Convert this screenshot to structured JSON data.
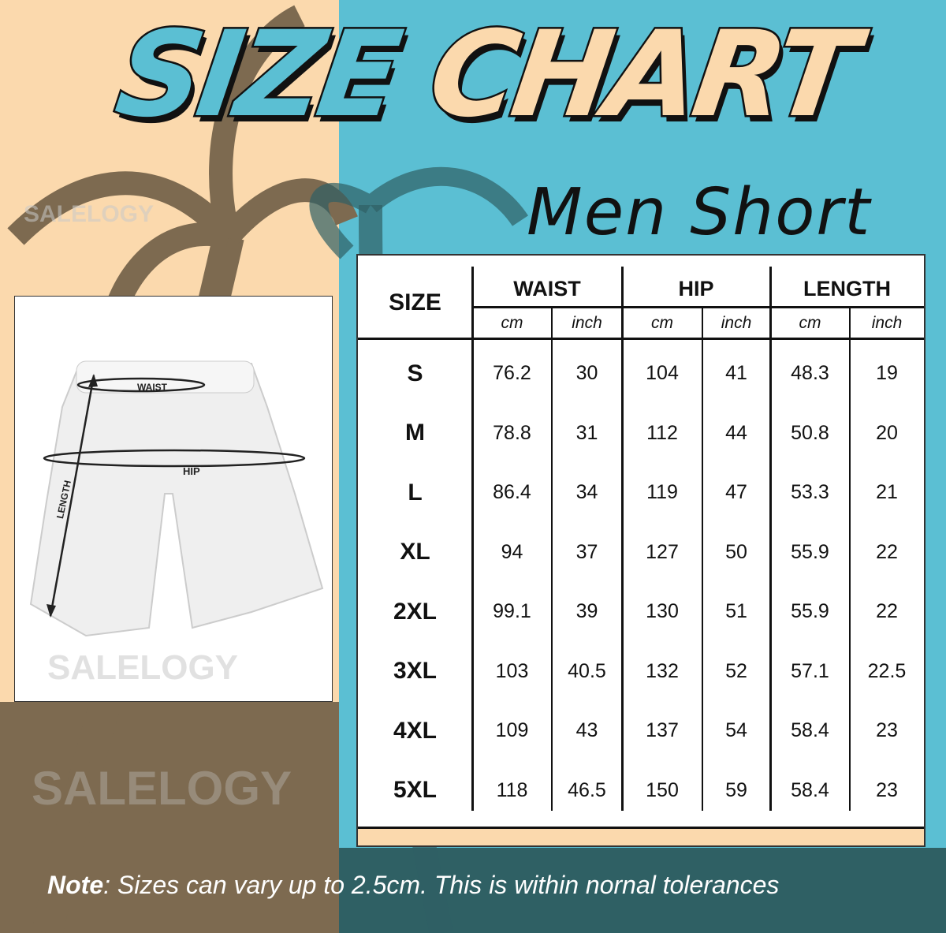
{
  "title": {
    "word1": "SIZE",
    "word2": "CHART",
    "subtitle": "Men Short"
  },
  "watermark": "SALELOGY",
  "colors": {
    "peach": "#fbd9ad",
    "brown": "#7d6a50",
    "teal": "#5bbfd3",
    "dark_teal": "#2f6064"
  },
  "diagram": {
    "waist_label": "WAIST",
    "hip_label": "HIP",
    "length_label": "LENGTH"
  },
  "chart_data": {
    "type": "table",
    "size_header": "SIZE",
    "groups": [
      {
        "label": "WAIST",
        "units": [
          "cm",
          "inch"
        ]
      },
      {
        "label": "HIP",
        "units": [
          "cm",
          "inch"
        ]
      },
      {
        "label": "LENGTH",
        "units": [
          "cm",
          "inch"
        ]
      }
    ],
    "rows": [
      {
        "size": "S",
        "values": [
          "76.2",
          "30",
          "104",
          "41",
          "48.3",
          "19"
        ]
      },
      {
        "size": "M",
        "values": [
          "78.8",
          "31",
          "112",
          "44",
          "50.8",
          "20"
        ]
      },
      {
        "size": "L",
        "values": [
          "86.4",
          "34",
          "119",
          "47",
          "53.3",
          "21"
        ]
      },
      {
        "size": "XL",
        "values": [
          "94",
          "37",
          "127",
          "50",
          "55.9",
          "22"
        ]
      },
      {
        "size": "2XL",
        "values": [
          "99.1",
          "39",
          "130",
          "51",
          "55.9",
          "22"
        ]
      },
      {
        "size": "3XL",
        "values": [
          "103",
          "40.5",
          "132",
          "52",
          "57.1",
          "22.5"
        ]
      },
      {
        "size": "4XL",
        "values": [
          "109",
          "43",
          "137",
          "54",
          "58.4",
          "23"
        ]
      },
      {
        "size": "5XL",
        "values": [
          "118",
          "46.5",
          "150",
          "59",
          "58.4",
          "23"
        ]
      }
    ]
  },
  "note": {
    "label": "Note",
    "text": ": Sizes can vary up to 2.5cm. This is within nornal tolerances"
  }
}
